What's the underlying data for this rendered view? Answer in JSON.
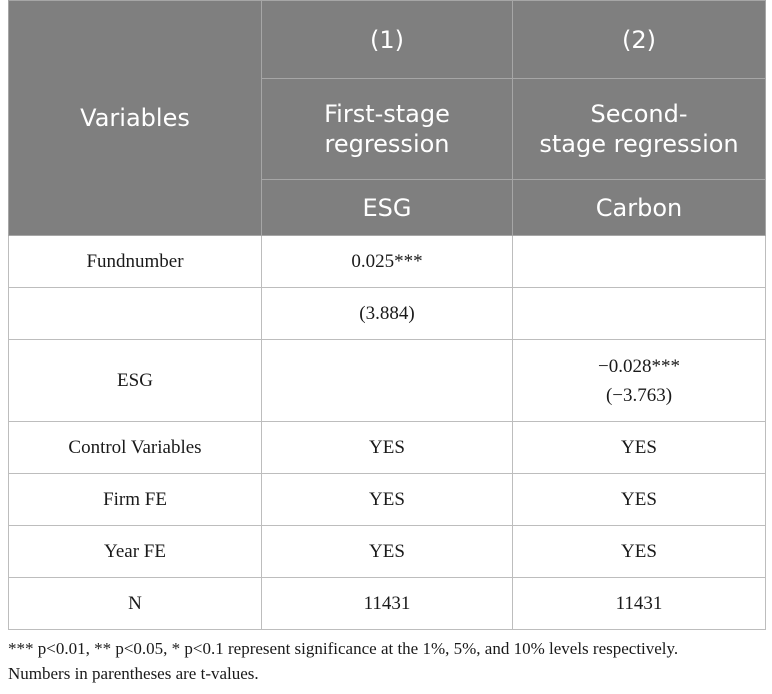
{
  "header": {
    "variables_label": "Variables",
    "col1_number": "(1)",
    "col2_number": "(2)",
    "col1_title": "First-stage regression",
    "col2_title_line1": "Second-",
    "col2_title_line2": "stage regression",
    "col1_dep": "ESG",
    "col2_dep": "Carbon"
  },
  "rows": [
    {
      "label": "Fundnumber",
      "c1": "0.025***",
      "c2": ""
    },
    {
      "label": "",
      "c1": "(3.884)",
      "c2": ""
    },
    {
      "label": "ESG",
      "c1": "",
      "c2_coef": "−0.028***",
      "c2_t": "(−3.763)"
    },
    {
      "label": "Control Variables",
      "c1": "YES",
      "c2": "YES"
    },
    {
      "label": "Firm FE",
      "c1": "YES",
      "c2": "YES"
    },
    {
      "label": "Year FE",
      "c1": "YES",
      "c2": "YES"
    },
    {
      "label": "N",
      "c1": "11431",
      "c2": "11431"
    }
  ],
  "notes": {
    "line1": "*** p<0.01, ** p<0.05, * p<0.1 represent significance at the 1%, 5%, and 10% levels respectively.",
    "line2": "Numbers in parentheses are t-values."
  }
}
